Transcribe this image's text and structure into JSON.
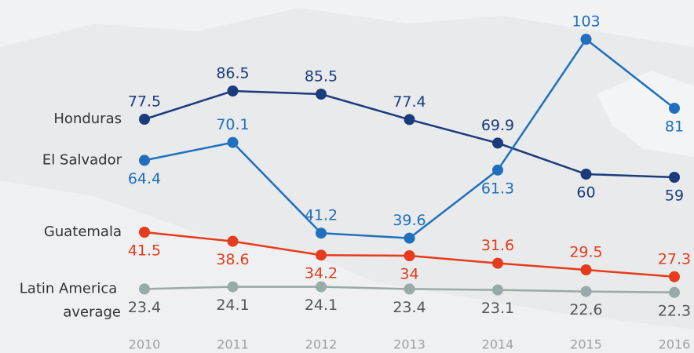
{
  "chart_data": {
    "type": "line",
    "categories": [
      "2010",
      "2011",
      "2012",
      "2013",
      "2014",
      "2015",
      "2016"
    ],
    "series": [
      {
        "name": "Honduras",
        "color": "#1b3b7c",
        "values": [
          77.5,
          86.5,
          85.5,
          77.4,
          69.9,
          60,
          59
        ]
      },
      {
        "name": "El Salvador",
        "color": "#1f6fbe",
        "values": [
          64.4,
          70.1,
          41.2,
          39.6,
          61.3,
          103,
          81
        ]
      },
      {
        "name": "Guatemala",
        "color": "#e63b1c",
        "values": [
          41.5,
          38.6,
          34.2,
          34,
          31.6,
          29.5,
          27.3
        ]
      },
      {
        "name": "Latin America average",
        "color": "#9aa9a9",
        "values": [
          23.4,
          24.1,
          24.1,
          23.4,
          23.1,
          22.6,
          22.3
        ]
      }
    ],
    "ylim": [
      3,
      115
    ]
  }
}
